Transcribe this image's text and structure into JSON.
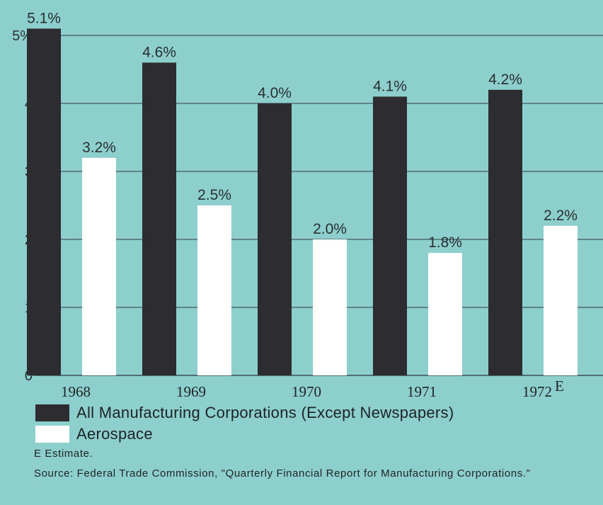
{
  "chart_data": {
    "type": "bar",
    "categories": [
      "1968",
      "1969",
      "1970",
      "1971",
      "1972"
    ],
    "category_suffix": {
      "1972": "E"
    },
    "series": [
      {
        "name": "All Manufacturing Corporations (Except Newspapers)",
        "values": [
          5.1,
          4.6,
          4.0,
          4.1,
          4.2
        ],
        "labels": [
          "5.1%",
          "4.6%",
          "4.0%",
          "4.1%",
          "4.2%"
        ],
        "color": "#2d2c30"
      },
      {
        "name": "Aerospace",
        "values": [
          3.2,
          2.5,
          2.0,
          1.8,
          2.2
        ],
        "labels": [
          "3.2%",
          "2.5%",
          "2.0%",
          "1.8%",
          "2.2%"
        ],
        "color": "#ffffff"
      }
    ],
    "y_ticks": [
      0,
      1,
      2,
      3,
      4,
      5
    ],
    "y_tick_labels": [
      "0",
      "1",
      "2",
      "3",
      "4",
      "5%"
    ],
    "ylim": [
      0,
      5
    ],
    "grid": true,
    "legend_position": "bottom-left"
  },
  "notes": {
    "estimate": "E Estimate.",
    "source": "Source: Federal Trade Commission, \"Quarterly Financial Report for Manufacturing Corporations.\""
  },
  "colors": {
    "background": "#8ccfcc",
    "gridline": "#4f6f72",
    "text": "#2a2f33"
  }
}
